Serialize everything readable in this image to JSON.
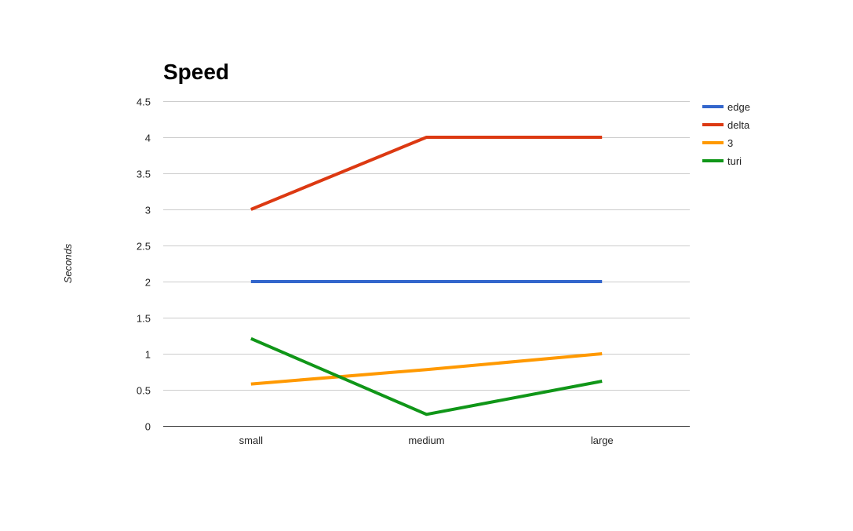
{
  "chart_data": {
    "type": "line",
    "title": "Speed",
    "xlabel": "",
    "ylabel": "Seconds",
    "categories": [
      "small",
      "medium",
      "large"
    ],
    "ylim": [
      0,
      4.5
    ],
    "yticks": [
      0,
      0.5,
      1,
      1.5,
      2,
      2.5,
      3,
      3.5,
      4,
      4.5
    ],
    "ytick_labels": [
      "0",
      "0.5",
      "1",
      "1.5",
      "2",
      "2.5",
      "3",
      "3.5",
      "4",
      "4.5"
    ],
    "grid": true,
    "legend_position": "right",
    "series": [
      {
        "name": "edge",
        "color": "#3366cc",
        "values": [
          2,
          2,
          2
        ]
      },
      {
        "name": "delta",
        "color": "#dc3912",
        "values": [
          3,
          4,
          4
        ]
      },
      {
        "name": "3",
        "color": "#ff9900",
        "values": [
          0.58,
          0.78,
          1.0
        ]
      },
      {
        "name": "turi",
        "color": "#109618",
        "values": [
          1.21,
          0.16,
          0.62
        ]
      }
    ]
  }
}
